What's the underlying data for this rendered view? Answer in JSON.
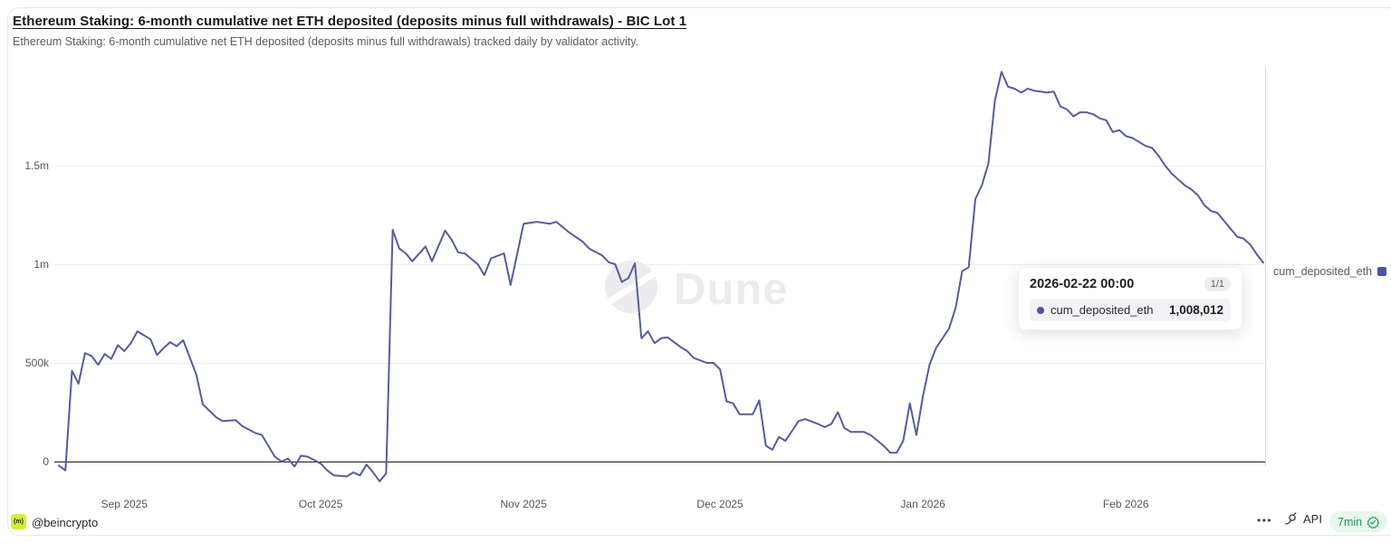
{
  "header": {
    "title": "Ethereum Staking: 6-month cumulative net ETH deposited (deposits minus full withdrawals) - BIC Lot 1",
    "subtitle": "Ethereum Staking: 6-month cumulative net ETH deposited (deposits minus full withdrawals) tracked daily by validator activity."
  },
  "watermark": "Dune",
  "colors": {
    "line": "#585c9d",
    "series_swatch": "#4e54a6",
    "grid": "#ededf0",
    "zero_axis": "#1b1b1e",
    "refresh_green": "#189a4f",
    "avatar_lime": "#ccf32f"
  },
  "legend": {
    "label": "cum_deposited_eth"
  },
  "tooltip": {
    "date": "2026-02-22 00:00",
    "page": "1/1",
    "series": "cum_deposited_eth",
    "value": "1,008,012"
  },
  "footer": {
    "avatar_glyph": "(m)",
    "author": "@beincrypto",
    "menu": "•••",
    "api_label": "API",
    "refresh": "7min"
  },
  "chart_data": {
    "type": "line",
    "title": "Ethereum Staking: 6-month cumulative net ETH deposited (deposits minus full withdrawals) - BIC Lot 1",
    "xlabel": "",
    "ylabel": "",
    "grid": "horizontal",
    "legend_position": "right",
    "ylim": [
      -150000,
      2000000
    ],
    "x_range": [
      "2025-08-22",
      "2026-02-22"
    ],
    "y_ticks": [
      {
        "label": "0",
        "value": 0
      },
      {
        "label": "500k",
        "value": 500000
      },
      {
        "label": "1m",
        "value": 1000000
      },
      {
        "label": "1.5m",
        "value": 1500000
      }
    ],
    "x_ticks": [
      {
        "label": "Sep 2025",
        "date": "2025-09-01"
      },
      {
        "label": "Oct 2025",
        "date": "2025-10-01"
      },
      {
        "label": "Nov 2025",
        "date": "2025-11-01"
      },
      {
        "label": "Dec 2025",
        "date": "2025-12-01"
      },
      {
        "label": "Jan 2026",
        "date": "2026-01-01"
      },
      {
        "label": "Feb 2026",
        "date": "2026-02-01"
      }
    ],
    "series": [
      {
        "name": "cum_deposited_eth",
        "color": "#585c9d",
        "points": [
          [
            "2025-08-22",
            -20000
          ],
          [
            "2025-08-23",
            -45000
          ],
          [
            "2025-08-24",
            460000
          ],
          [
            "2025-08-25",
            395000
          ],
          [
            "2025-08-26",
            550000
          ],
          [
            "2025-08-27",
            535000
          ],
          [
            "2025-08-28",
            490000
          ],
          [
            "2025-08-29",
            545000
          ],
          [
            "2025-08-30",
            520000
          ],
          [
            "2025-08-31",
            590000
          ],
          [
            "2025-09-01",
            560000
          ],
          [
            "2025-09-02",
            600000
          ],
          [
            "2025-09-03",
            660000
          ],
          [
            "2025-09-04",
            640000
          ],
          [
            "2025-09-05",
            620000
          ],
          [
            "2025-09-06",
            540000
          ],
          [
            "2025-09-07",
            575000
          ],
          [
            "2025-09-08",
            605000
          ],
          [
            "2025-09-09",
            585000
          ],
          [
            "2025-09-10",
            615000
          ],
          [
            "2025-09-12",
            440000
          ],
          [
            "2025-09-13",
            290000
          ],
          [
            "2025-09-15",
            225000
          ],
          [
            "2025-09-16",
            205000
          ],
          [
            "2025-09-18",
            210000
          ],
          [
            "2025-09-19",
            180000
          ],
          [
            "2025-09-21",
            145000
          ],
          [
            "2025-09-22",
            135000
          ],
          [
            "2025-09-24",
            25000
          ],
          [
            "2025-09-25",
            0
          ],
          [
            "2025-09-26",
            15000
          ],
          [
            "2025-09-27",
            -25000
          ],
          [
            "2025-09-28",
            30000
          ],
          [
            "2025-09-29",
            25000
          ],
          [
            "2025-10-01",
            -10000
          ],
          [
            "2025-10-02",
            -45000
          ],
          [
            "2025-10-03",
            -70000
          ],
          [
            "2025-10-05",
            -75000
          ],
          [
            "2025-10-06",
            -55000
          ],
          [
            "2025-10-07",
            -70000
          ],
          [
            "2025-10-08",
            -15000
          ],
          [
            "2025-10-09",
            -55000
          ],
          [
            "2025-10-10",
            -100000
          ],
          [
            "2025-10-11",
            -60000
          ],
          [
            "2025-10-12",
            1175000
          ],
          [
            "2025-10-13",
            1080000
          ],
          [
            "2025-10-14",
            1055000
          ],
          [
            "2025-10-15",
            1015000
          ],
          [
            "2025-10-17",
            1090000
          ],
          [
            "2025-10-18",
            1015000
          ],
          [
            "2025-10-20",
            1170000
          ],
          [
            "2025-10-21",
            1125000
          ],
          [
            "2025-10-22",
            1060000
          ],
          [
            "2025-10-23",
            1055000
          ],
          [
            "2025-10-25",
            1000000
          ],
          [
            "2025-10-26",
            945000
          ],
          [
            "2025-10-27",
            1030000
          ],
          [
            "2025-10-29",
            1055000
          ],
          [
            "2025-10-30",
            895000
          ],
          [
            "2025-11-01",
            1205000
          ],
          [
            "2025-11-03",
            1215000
          ],
          [
            "2025-11-05",
            1205000
          ],
          [
            "2025-11-06",
            1215000
          ],
          [
            "2025-11-08",
            1160000
          ],
          [
            "2025-11-10",
            1115000
          ],
          [
            "2025-11-11",
            1080000
          ],
          [
            "2025-11-13",
            1045000
          ],
          [
            "2025-11-14",
            1010000
          ],
          [
            "2025-11-15",
            1000000
          ],
          [
            "2025-11-16",
            910000
          ],
          [
            "2025-11-17",
            930000
          ],
          [
            "2025-11-18",
            1005000
          ],
          [
            "2025-11-19",
            625000
          ],
          [
            "2025-11-20",
            660000
          ],
          [
            "2025-11-21",
            600000
          ],
          [
            "2025-11-22",
            625000
          ],
          [
            "2025-11-23",
            630000
          ],
          [
            "2025-11-25",
            580000
          ],
          [
            "2025-11-26",
            560000
          ],
          [
            "2025-11-27",
            525000
          ],
          [
            "2025-11-29",
            500000
          ],
          [
            "2025-11-30",
            500000
          ],
          [
            "2025-12-01",
            468000
          ],
          [
            "2025-12-02",
            305000
          ],
          [
            "2025-12-03",
            295000
          ],
          [
            "2025-12-04",
            240000
          ],
          [
            "2025-12-06",
            240000
          ],
          [
            "2025-12-07",
            310000
          ],
          [
            "2025-12-08",
            80000
          ],
          [
            "2025-12-09",
            60000
          ],
          [
            "2025-12-10",
            125000
          ],
          [
            "2025-12-11",
            105000
          ],
          [
            "2025-12-13",
            205000
          ],
          [
            "2025-12-14",
            215000
          ],
          [
            "2025-12-16",
            190000
          ],
          [
            "2025-12-17",
            175000
          ],
          [
            "2025-12-18",
            190000
          ],
          [
            "2025-12-19",
            250000
          ],
          [
            "2025-12-20",
            170000
          ],
          [
            "2025-12-21",
            150000
          ],
          [
            "2025-12-23",
            150000
          ],
          [
            "2025-12-24",
            135000
          ],
          [
            "2025-12-26",
            80000
          ],
          [
            "2025-12-27",
            45000
          ],
          [
            "2025-12-28",
            45000
          ],
          [
            "2025-12-29",
            105000
          ],
          [
            "2025-12-30",
            295000
          ],
          [
            "2025-12-31",
            135000
          ],
          [
            "2026-01-01",
            330000
          ],
          [
            "2026-01-02",
            490000
          ],
          [
            "2026-01-03",
            575000
          ],
          [
            "2026-01-04",
            625000
          ],
          [
            "2026-01-05",
            675000
          ],
          [
            "2026-01-06",
            780000
          ],
          [
            "2026-01-07",
            965000
          ],
          [
            "2026-01-08",
            985000
          ],
          [
            "2026-01-09",
            1330000
          ],
          [
            "2026-01-10",
            1400000
          ],
          [
            "2026-01-11",
            1510000
          ],
          [
            "2026-01-12",
            1830000
          ],
          [
            "2026-01-13",
            1975000
          ],
          [
            "2026-01-14",
            1900000
          ],
          [
            "2026-01-15",
            1890000
          ],
          [
            "2026-01-16",
            1870000
          ],
          [
            "2026-01-17",
            1890000
          ],
          [
            "2026-01-18",
            1880000
          ],
          [
            "2026-01-20",
            1870000
          ],
          [
            "2026-01-21",
            1875000
          ],
          [
            "2026-01-22",
            1800000
          ],
          [
            "2026-01-23",
            1785000
          ],
          [
            "2026-01-24",
            1750000
          ],
          [
            "2026-01-25",
            1770000
          ],
          [
            "2026-01-26",
            1770000
          ],
          [
            "2026-01-27",
            1760000
          ],
          [
            "2026-01-28",
            1740000
          ],
          [
            "2026-01-29",
            1730000
          ],
          [
            "2026-01-30",
            1670000
          ],
          [
            "2026-01-31",
            1680000
          ],
          [
            "2026-02-01",
            1650000
          ],
          [
            "2026-02-02",
            1640000
          ],
          [
            "2026-02-03",
            1620000
          ],
          [
            "2026-02-04",
            1600000
          ],
          [
            "2026-02-05",
            1590000
          ],
          [
            "2026-02-06",
            1550000
          ],
          [
            "2026-02-07",
            1500000
          ],
          [
            "2026-02-08",
            1460000
          ],
          [
            "2026-02-09",
            1430000
          ],
          [
            "2026-02-10",
            1400000
          ],
          [
            "2026-02-11",
            1380000
          ],
          [
            "2026-02-12",
            1350000
          ],
          [
            "2026-02-13",
            1300000
          ],
          [
            "2026-02-14",
            1270000
          ],
          [
            "2026-02-15",
            1260000
          ],
          [
            "2026-02-16",
            1220000
          ],
          [
            "2026-02-17",
            1180000
          ],
          [
            "2026-02-18",
            1140000
          ],
          [
            "2026-02-19",
            1130000
          ],
          [
            "2026-02-20",
            1100000
          ],
          [
            "2026-02-21",
            1050000
          ],
          [
            "2026-02-22",
            1008012
          ]
        ]
      }
    ]
  }
}
